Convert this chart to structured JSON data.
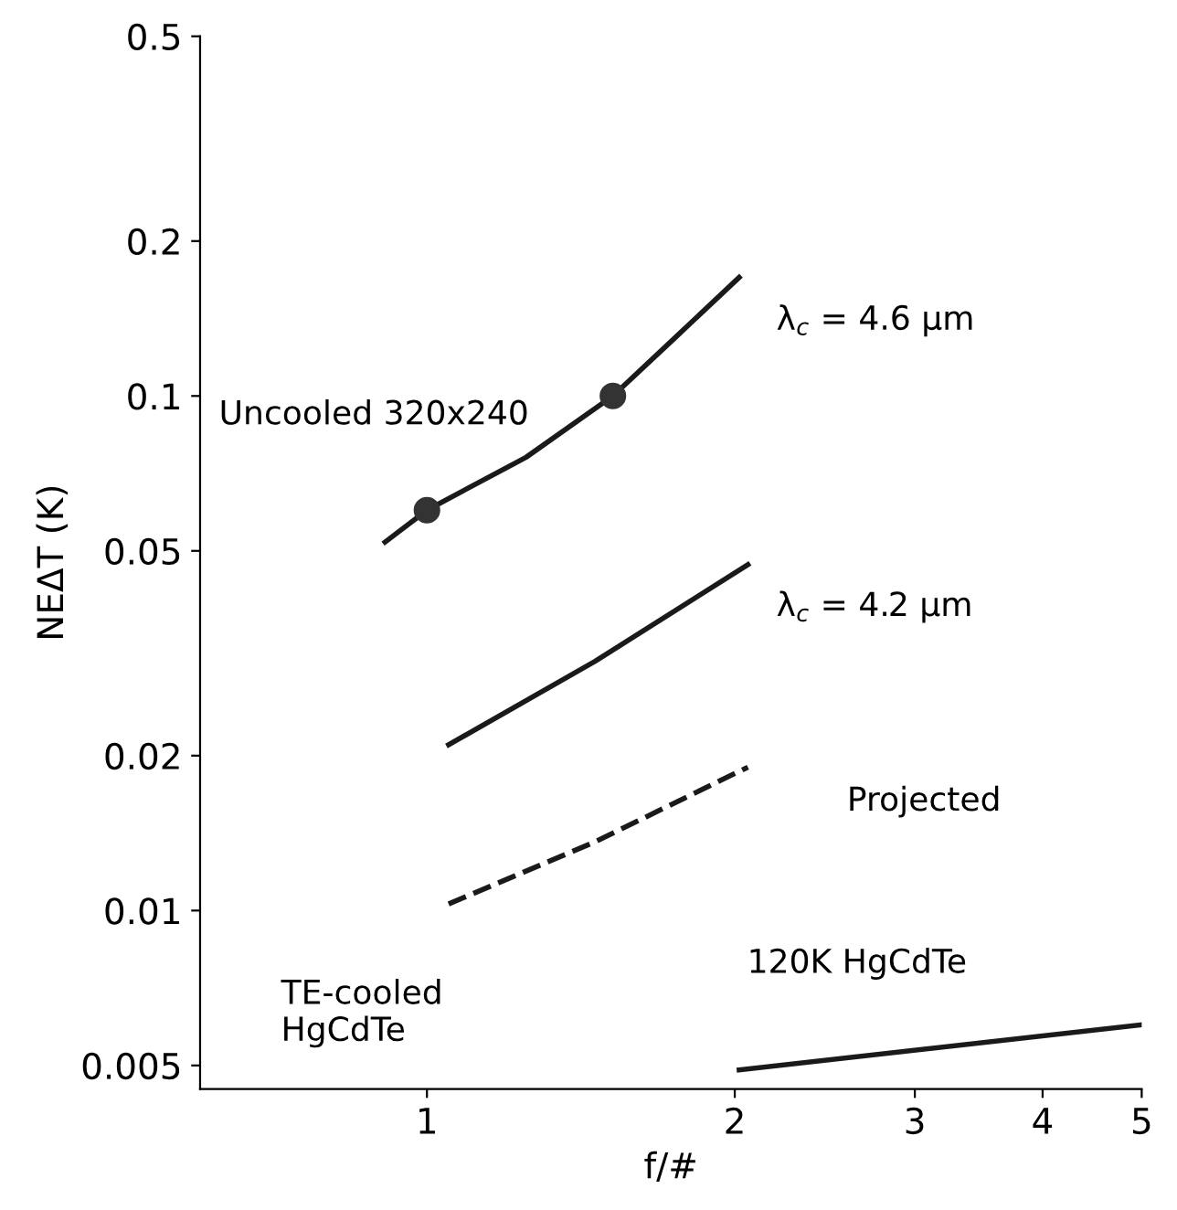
{
  "chart_data": {
    "type": "line",
    "xlabel": "f/#",
    "ylabel": "NEΔT (K)",
    "log": "xy",
    "grid": false,
    "legend": false,
    "xlim": [
      0.6,
      5
    ],
    "xticks": [
      1,
      2,
      3,
      4,
      5
    ],
    "ylim": [
      0.0045,
      0.5
    ],
    "yticks": [
      0.005,
      0.01,
      0.02,
      0.05,
      0.1,
      0.2,
      0.5
    ],
    "series": [
      {
        "color": "#1a1a1a",
        "line_style": "solid",
        "marker": "none",
        "x": [
          0.91,
          1.0,
          1.25,
          1.52,
          1.75,
          2.02
        ],
        "values": [
          0.052,
          0.06,
          0.076,
          0.1,
          0.13,
          0.17
        ]
      },
      {
        "type": "scatter",
        "color": "#333333",
        "marker": "circle",
        "x": [
          1.0,
          1.52
        ],
        "values": [
          0.06,
          0.1
        ]
      },
      {
        "type": "line",
        "color": "#1a1a1a",
        "line_style": "solid",
        "marker": "none",
        "x": [
          1.05,
          1.46,
          2.06
        ],
        "values": [
          0.021,
          0.0305,
          0.047
        ]
      },
      {
        "type": "line",
        "color": "#1a1a1a",
        "line_style": "dashed",
        "marker": "none",
        "x": [
          1.05,
          1.46,
          2.06
        ],
        "values": [
          0.0103,
          0.0136,
          0.019
        ]
      },
      {
        "type": "line",
        "color": "#1a1a1a",
        "line_style": "solid",
        "marker": "none",
        "x": [
          2.02,
          5.0
        ],
        "values": [
          0.0049,
          0.006
        ]
      }
    ],
    "annotations": [
      "Uncooled 320x240",
      "λ$_{c}$ = 4.6 μm",
      "λ$_{c}$ = 4.2 μm",
      "Projected",
      "120K HgCdTe",
      "TE-cooled\nHgCdTe"
    ]
  }
}
